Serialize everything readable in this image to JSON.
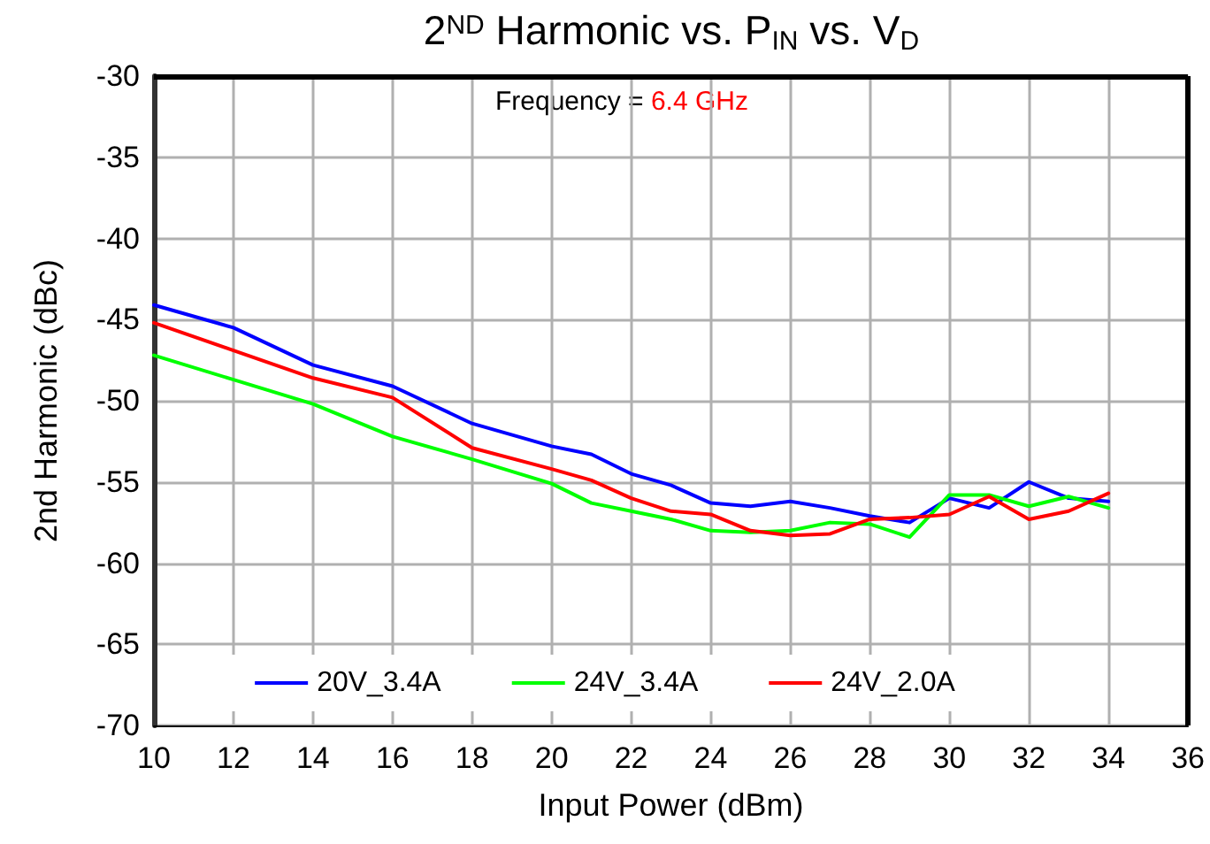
{
  "chart_data": {
    "type": "line",
    "title": "2$^{ND}$ Harmonic vs. P$_{IN}$ vs. V$_{D}$",
    "xlabel": "Input Power (dBm)",
    "ylabel": "2nd Harmonic (dBc)",
    "annotations": [
      "Frequency = 6.4 GHz"
    ],
    "x": [
      10,
      12,
      14,
      16,
      18,
      20,
      21,
      22,
      23,
      24,
      25,
      26,
      27,
      28,
      29,
      30,
      31,
      32,
      33,
      34
    ],
    "series": [
      {
        "name": "20V_3.4A",
        "color": "#0000ff",
        "values": [
          -44.1,
          -45.5,
          -47.8,
          -49.1,
          -51.4,
          -52.8,
          -53.3,
          -54.5,
          -55.2,
          -56.3,
          -56.5,
          -56.2,
          -56.6,
          -57.1,
          -57.5,
          -56.0,
          -56.6,
          -55.0,
          -56.0,
          -56.2
        ]
      },
      {
        "name": "24V_3.4A",
        "color": "#00ff00",
        "values": [
          -47.2,
          -48.7,
          -50.2,
          -52.2,
          -53.6,
          -55.1,
          -56.3,
          -56.8,
          -57.3,
          -58.0,
          -58.1,
          -58.0,
          -57.5,
          -57.6,
          -58.4,
          -55.8,
          -55.8,
          -56.5,
          -55.9,
          -56.6
        ]
      },
      {
        "name": "24V_2.0A",
        "color": "#ff0000",
        "values": [
          -45.2,
          -46.9,
          -48.6,
          -49.8,
          -52.9,
          -54.2,
          -54.9,
          -56.0,
          -56.8,
          -57.0,
          -58.0,
          -58.3,
          -58.2,
          -57.3,
          -57.2,
          -57.0,
          -55.9,
          -57.3,
          -56.8,
          -55.7
        ]
      }
    ],
    "xlim": [
      10,
      36
    ],
    "xticks": [
      10,
      12,
      14,
      16,
      18,
      20,
      22,
      24,
      26,
      28,
      30,
      32,
      34,
      36
    ],
    "ylim": [
      -70,
      -30
    ],
    "yticks": [
      -70,
      -65,
      -60,
      -55,
      -50,
      -45,
      -40,
      -35,
      -30
    ],
    "grid": true,
    "legend": "bottom",
    "marker": "none",
    "line_style": "solid"
  }
}
